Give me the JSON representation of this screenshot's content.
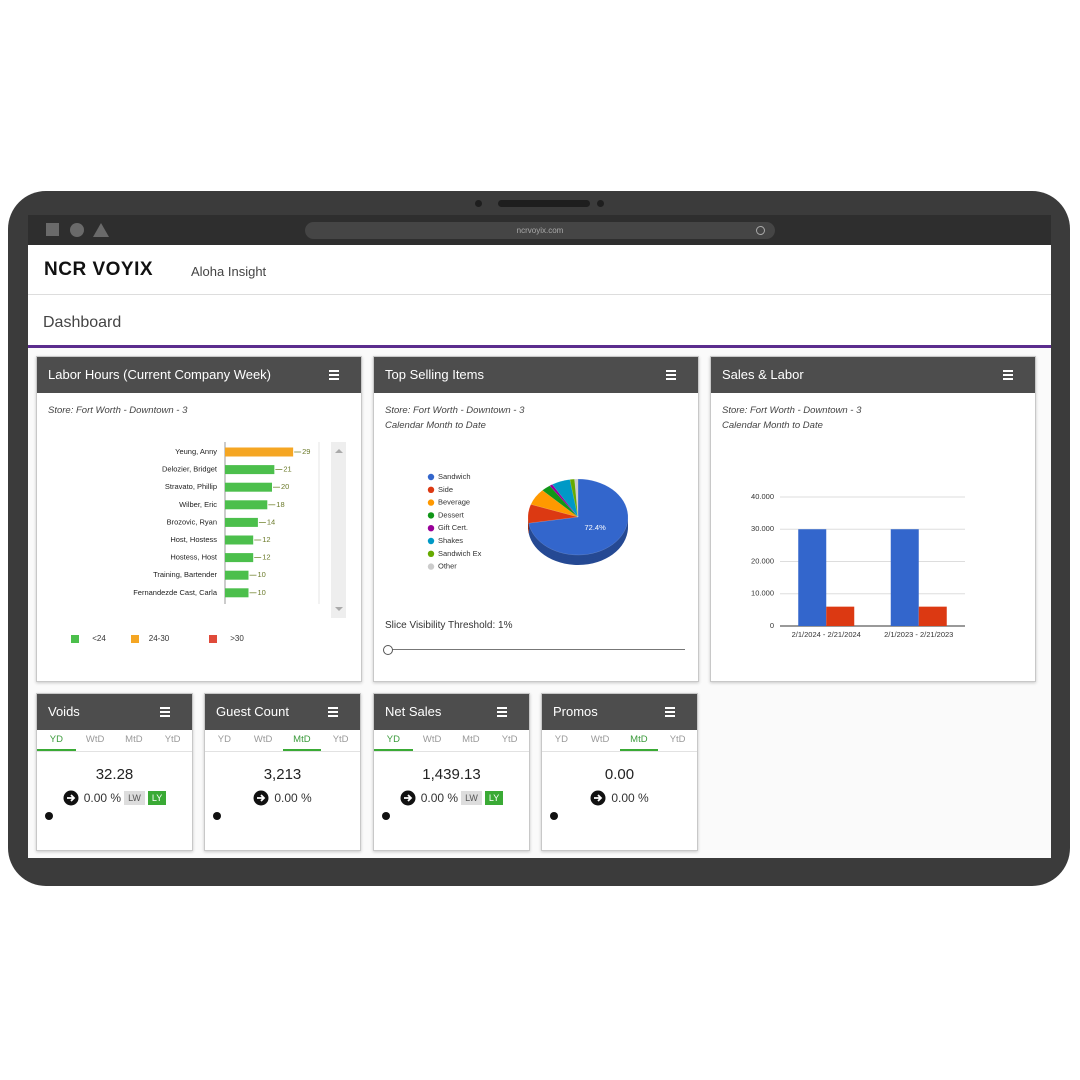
{
  "browser": {
    "url": "ncrvoyix.com"
  },
  "header": {
    "logo": "NCR VOYIX",
    "app": "Aloha Insight"
  },
  "page_title": "Dashboard",
  "labor": {
    "title": "Labor Hours (Current Company Week)",
    "store": "Store: Fort Worth - Downtown - 3",
    "chart": {
      "type": "bar",
      "orientation": "horizontal",
      "categories": [
        "Yeung, Anny",
        "Delozier, Bridget",
        "Stravato, Phillip",
        "Wilber, Eric",
        "Brozovic, Ryan",
        "Host, Hostess",
        "Hostess, Host",
        "Training, Bartender",
        "Fernandezde Cast, Carla"
      ],
      "values": [
        29,
        21,
        20,
        18,
        14,
        12,
        12,
        10,
        10
      ],
      "colors": [
        "#f5a623",
        "#4cbf4c",
        "#4cbf4c",
        "#4cbf4c",
        "#4cbf4c",
        "#4cbf4c",
        "#4cbf4c",
        "#4cbf4c",
        "#4cbf4c"
      ],
      "xlim": [
        0,
        40
      ],
      "legend": [
        {
          "name": "<24",
          "color": "#4cbf4c"
        },
        {
          "name": "24-30",
          "color": "#f5a623"
        },
        {
          "name": ">30",
          "color": "#e04a3a"
        }
      ]
    }
  },
  "top_selling": {
    "title": "Top Selling Items",
    "store": "Store: Fort Worth - Downtown - 3",
    "period": "Calendar Month to Date",
    "chart": {
      "type": "pie",
      "categories": [
        "Sandwich",
        "Side",
        "Beverage",
        "Dessert",
        "Gift Cert.",
        "Shakes",
        "Sandwich Ex",
        "Other"
      ],
      "values": [
        72.4,
        8,
        7,
        3,
        1,
        6,
        1.5,
        1.1
      ],
      "value_labels": [
        "72.4%",
        null,
        null,
        null,
        null,
        null,
        null,
        null
      ],
      "colors": [
        "#3366cc",
        "#dc3912",
        "#ff9900",
        "#109618",
        "#990099",
        "#0099c6",
        "#66aa00",
        "#cccccc"
      ]
    },
    "threshold": "Slice Visibility Threshold: 1%"
  },
  "sales_labor": {
    "title": "Sales & Labor",
    "store": "Store: Fort Worth - Downtown - 3",
    "period": "Calendar Month to Date",
    "chart": {
      "type": "bar",
      "categories": [
        "2/1/2024 - 2/21/2024",
        "2/1/2023 - 2/21/2023"
      ],
      "series": [
        {
          "color": "#3366cc",
          "values": [
            30000,
            30000
          ]
        },
        {
          "color": "#dc3912",
          "values": [
            6000,
            6000
          ]
        }
      ],
      "ylim": [
        0,
        40000
      ],
      "yticks": [
        0,
        {
          "value": 10000,
          "label": "10.000"
        },
        {
          "value": 20000,
          "label": "20.000"
        },
        {
          "value": 30000,
          "label": "30.000"
        },
        {
          "value": 40000,
          "label": "40.000"
        }
      ],
      "grid": true
    }
  },
  "kpi_tabs": [
    "YD",
    "WtD",
    "MtD",
    "YtD"
  ],
  "kpis": [
    {
      "title": "Voids",
      "active_tab": 0,
      "value": "32.28",
      "change": "0.00 %",
      "compare": [
        "LW",
        "LY"
      ]
    },
    {
      "title": "Guest Count",
      "active_tab": 2,
      "value": "3,213",
      "change": "0.00 %"
    },
    {
      "title": "Net Sales",
      "active_tab": 0,
      "value": "1,439.13",
      "change": "0.00 %",
      "compare": [
        "LW",
        "LY"
      ]
    },
    {
      "title": "Promos",
      "active_tab": 2,
      "value": "0.00",
      "change": "0.00 %"
    }
  ]
}
